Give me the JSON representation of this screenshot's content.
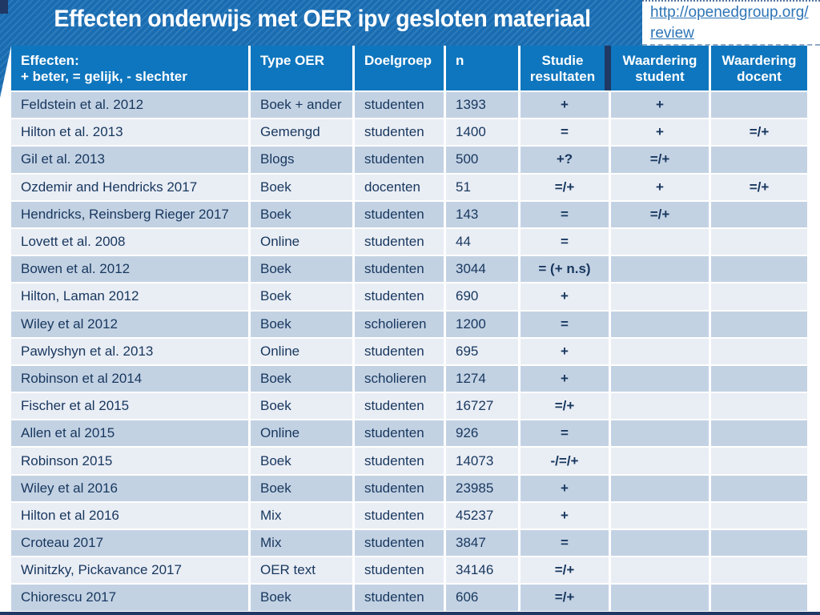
{
  "slide": {
    "title": "Effecten onderwijs met OER ipv gesloten materiaal",
    "link": {
      "line1": "http://openedgroup.org/",
      "line2": "review"
    }
  },
  "colors": {
    "banner_blue": "#1a6cb1",
    "banner_stripe": "#2d7cbc",
    "header_blue": "#0e76be",
    "row_dark": "#c3d2e3",
    "row_light": "#e9edf4",
    "text_navy": "#17375e",
    "accent_navy": "#1f3864",
    "link_blue": "#2e75b6"
  },
  "table": {
    "headers": [
      {
        "line1": "Effecten:",
        "line2": "+ beter, = gelijk, - slechter"
      },
      {
        "line1": "Type OER",
        "line2": ""
      },
      {
        "line1": "Doelgroep",
        "line2": ""
      },
      {
        "line1": "n",
        "line2": ""
      },
      {
        "line1": "Studie",
        "line2": "resultaten"
      },
      {
        "line1": "Waardering",
        "line2": "student"
      },
      {
        "line1": "Waardering",
        "line2": "docent"
      }
    ],
    "rows": [
      {
        "study": "Feldstein et al. 2012",
        "type_oer": "Boek + ander",
        "doelgroep": "studenten",
        "n": "1393",
        "studie_resultaten": "+",
        "waardering_student": "+",
        "waardering_docent": ""
      },
      {
        "study": "Hilton et al. 2013",
        "type_oer": "Gemengd",
        "doelgroep": "studenten",
        "n": "1400",
        "studie_resultaten": "=",
        "waardering_student": "+",
        "waardering_docent": "=/+"
      },
      {
        "study": "Gil et al. 2013",
        "type_oer": "Blogs",
        "doelgroep": "studenten",
        "n": "500",
        "studie_resultaten": "+?",
        "waardering_student": "=/+",
        "waardering_docent": ""
      },
      {
        "study": "Ozdemir and Hendricks 2017",
        "type_oer": "Boek",
        "doelgroep": "docenten",
        "n": "51",
        "studie_resultaten": "=/+",
        "waardering_student": "+",
        "waardering_docent": "=/+"
      },
      {
        "study": "Hendricks, Reinsberg Rieger 2017",
        "type_oer": "Boek",
        "doelgroep": "studenten",
        "n": "143",
        "studie_resultaten": "=",
        "waardering_student": "=/+",
        "waardering_docent": ""
      },
      {
        "study": "Lovett et al. 2008",
        "type_oer": "Online",
        "doelgroep": "studenten",
        "n": "44",
        "studie_resultaten": "=",
        "waardering_student": "",
        "waardering_docent": ""
      },
      {
        "study": "Bowen et al. 2012",
        "type_oer": "Boek",
        "doelgroep": "studenten",
        "n": "3044",
        "studie_resultaten": "= (+ n.s)",
        "waardering_student": "",
        "waardering_docent": ""
      },
      {
        "study": "Hilton, Laman 2012",
        "type_oer": "Boek",
        "doelgroep": "studenten",
        "n": "690",
        "studie_resultaten": "+",
        "waardering_student": "",
        "waardering_docent": ""
      },
      {
        "study": "Wiley et al 2012",
        "type_oer": "Boek",
        "doelgroep": "scholieren",
        "n": "1200",
        "studie_resultaten": "=",
        "waardering_student": "",
        "waardering_docent": ""
      },
      {
        "study": "Pawlyshyn et al. 2013",
        "type_oer": "Online",
        "doelgroep": "studenten",
        "n": "695",
        "studie_resultaten": "+",
        "waardering_student": "",
        "waardering_docent": ""
      },
      {
        "study": "Robinson et al 2014",
        "type_oer": "Boek",
        "doelgroep": "scholieren",
        "n": "1274",
        "studie_resultaten": "+",
        "waardering_student": "",
        "waardering_docent": ""
      },
      {
        "study": "Fischer et al 2015",
        "type_oer": "Boek",
        "doelgroep": "studenten",
        "n": "16727",
        "studie_resultaten": "=/+",
        "waardering_student": "",
        "waardering_docent": ""
      },
      {
        "study": "Allen et al 2015",
        "type_oer": "Online",
        "doelgroep": "studenten",
        "n": "926",
        "studie_resultaten": "=",
        "waardering_student": "",
        "waardering_docent": ""
      },
      {
        "study": "Robinson 2015",
        "type_oer": "Boek",
        "doelgroep": "studenten",
        "n": "14073",
        "studie_resultaten": "-/=/+",
        "waardering_student": "",
        "waardering_docent": ""
      },
      {
        "study": "Wiley et al 2016",
        "type_oer": "Boek",
        "doelgroep": "studenten",
        "n": "23985",
        "studie_resultaten": "+",
        "waardering_student": "",
        "waardering_docent": ""
      },
      {
        "study": "Hilton et al 2016",
        "type_oer": "Mix",
        "doelgroep": "studenten",
        "n": "45237",
        "studie_resultaten": "+",
        "waardering_student": "",
        "waardering_docent": ""
      },
      {
        "study": "Croteau 2017",
        "type_oer": "Mix",
        "doelgroep": "studenten",
        "n": "3847",
        "studie_resultaten": "=",
        "waardering_student": "",
        "waardering_docent": ""
      },
      {
        "study": "Winitzky, Pickavance 2017",
        "type_oer": "OER text",
        "doelgroep": "studenten",
        "n": "34146",
        "studie_resultaten": "=/+",
        "waardering_student": "",
        "waardering_docent": ""
      },
      {
        "study": "Chiorescu 2017",
        "type_oer": "Boek",
        "doelgroep": "studenten",
        "n": "606",
        "studie_resultaten": "=/+",
        "waardering_student": "",
        "waardering_docent": ""
      }
    ]
  }
}
